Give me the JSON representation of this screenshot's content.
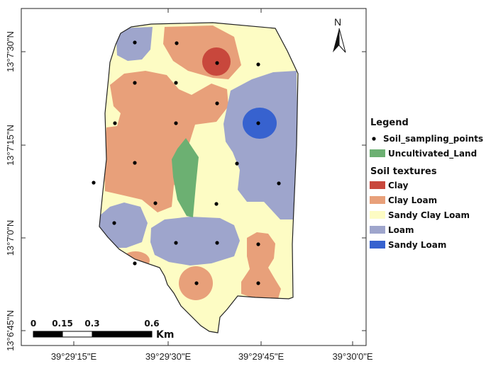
{
  "map": {
    "latitude_labels": [
      "13°7'30\"N",
      "13°7'15\"N",
      "13°7'0\"N",
      "13°6'45\"N"
    ],
    "longitude_labels": [
      "39°29'15\"E",
      "39°29'30\"E",
      "39°29'45\"E",
      "39°30'0\"E"
    ],
    "north_arrow": "N",
    "scale_bar": {
      "ticks": [
        "0",
        "0.15",
        "0.3",
        "0.6"
      ],
      "unit": "Km"
    }
  },
  "legend": {
    "title": "Legend",
    "point_label": "Soil_sampling_points",
    "uncultivated_label": "Uncultivated_Land",
    "soil_heading": "Soil textures",
    "classes": [
      {
        "label": "Clay",
        "color": "#c8473c"
      },
      {
        "label": "Clay Loam",
        "color": "#e8a07a"
      },
      {
        "label": "Sandy Clay Loam",
        "color": "#fdfcc4"
      },
      {
        "label": "Loam",
        "color": "#9ea5cc"
      },
      {
        "label": "Sandy Loam",
        "color": "#3762cf"
      }
    ],
    "uncultivated_color": "#6cb072"
  }
}
